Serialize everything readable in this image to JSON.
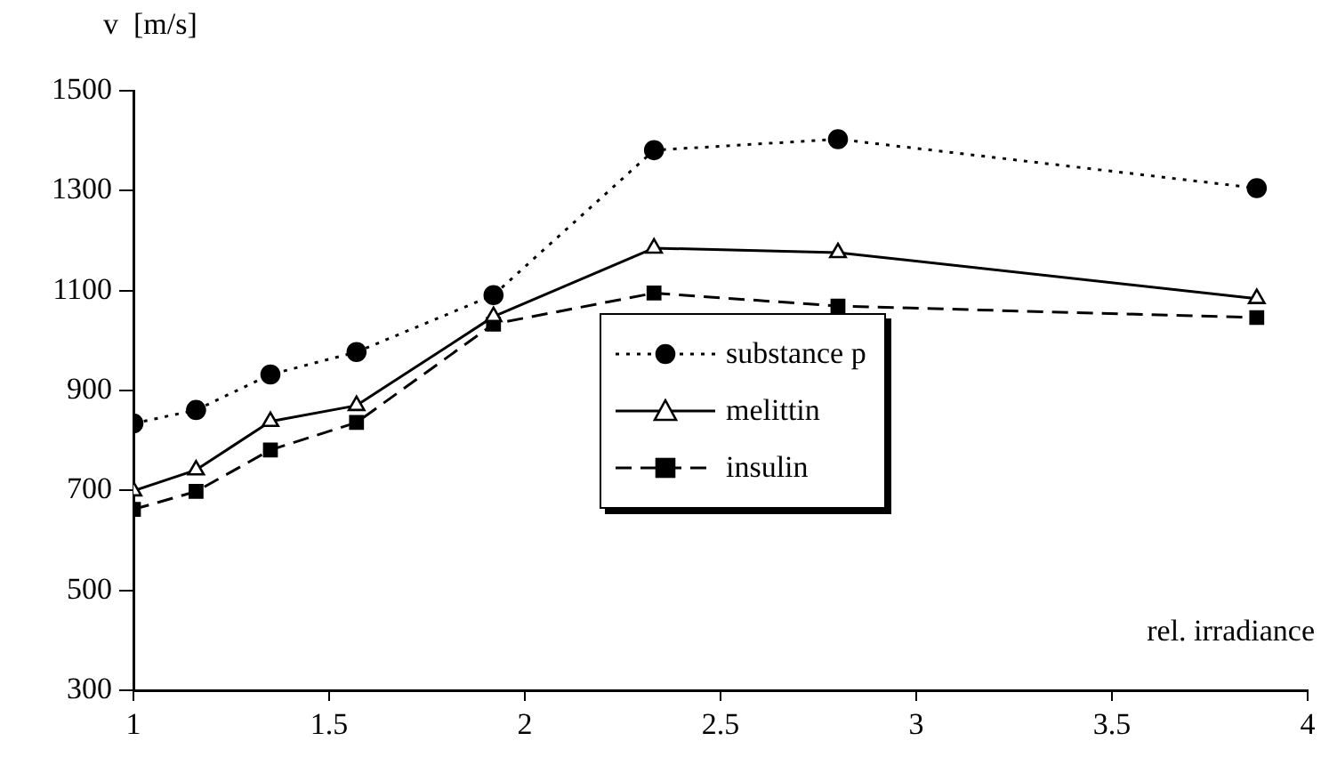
{
  "chart_data": {
    "type": "line",
    "xlabel": "rel. irradiance",
    "ylabel": "v  [m/s]",
    "x": [
      1.0,
      1.16,
      1.35,
      1.57,
      1.92,
      2.33,
      2.8,
      3.87
    ],
    "series": [
      {
        "name": "substance p",
        "color": "#000000",
        "marker": "circle",
        "line_style": "dotted",
        "values": [
          834,
          861,
          932,
          977,
          1091,
          1381,
          1403,
          1305
        ]
      },
      {
        "name": "melittin",
        "color": "#000000",
        "marker": "triangle",
        "line_style": "solid",
        "values": [
          699,
          741,
          838,
          870,
          1048,
          1185,
          1176,
          1084
        ]
      },
      {
        "name": "insulin",
        "color": "#000000",
        "marker": "square",
        "line_style": "dashed",
        "values": [
          662,
          698,
          781,
          836,
          1033,
          1095,
          1069,
          1046
        ]
      }
    ],
    "xlim": [
      1,
      4
    ],
    "xticks": [
      1,
      1.5,
      2,
      2.5,
      3,
      3.5,
      4
    ],
    "ylim": [
      300,
      1500
    ],
    "yticks": [
      300,
      500,
      700,
      900,
      1100,
      1300,
      1500
    ],
    "grid": false,
    "legend": "center"
  }
}
